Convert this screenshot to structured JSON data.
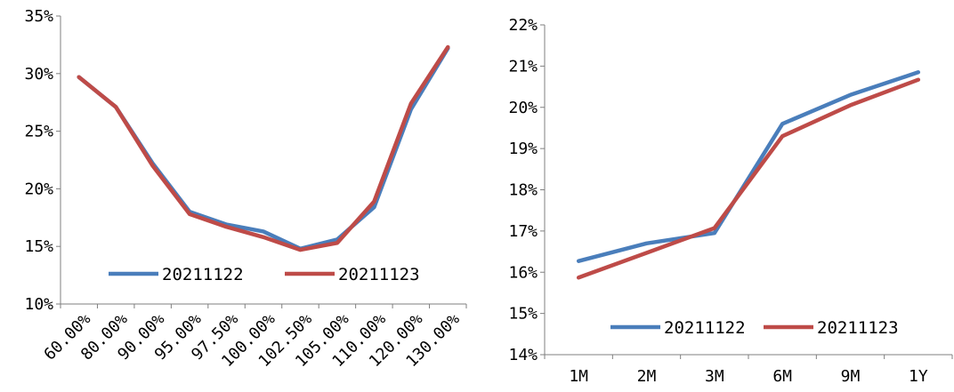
{
  "chart_data": [
    {
      "type": "line",
      "categories": [
        "60.00%",
        "80.00%",
        "90.00%",
        "95.00%",
        "97.50%",
        "100.00%",
        "102.50%",
        "105.00%",
        "110.00%",
        "120.00%",
        "130.00%"
      ],
      "y_ticks": [
        "10%",
        "15%",
        "20%",
        "25%",
        "30%",
        "35%"
      ],
      "ylim": [
        10,
        35
      ],
      "series": [
        {
          "name": "20211122",
          "color": "#4a7ebb",
          "values": [
            29.7,
            27.1,
            22.2,
            18.0,
            16.9,
            16.3,
            14.8,
            15.6,
            18.4,
            26.9,
            32.2
          ]
        },
        {
          "name": "20211123",
          "color": "#be4b48",
          "values": [
            29.7,
            27.1,
            22.0,
            17.8,
            16.7,
            15.8,
            14.7,
            15.3,
            18.9,
            27.4,
            32.3
          ]
        }
      ],
      "legend_position": "bottom-center",
      "grid": false
    },
    {
      "type": "line",
      "categories": [
        "1M",
        "2M",
        "3M",
        "6M",
        "9M",
        "1Y"
      ],
      "y_ticks": [
        "14%",
        "15%",
        "16%",
        "17%",
        "18%",
        "19%",
        "20%",
        "21%",
        "22%"
      ],
      "ylim": [
        14,
        22
      ],
      "series": [
        {
          "name": "20211122",
          "color": "#4a7ebb",
          "values": [
            16.27,
            16.7,
            16.95,
            19.6,
            20.3,
            20.85
          ]
        },
        {
          "name": "20211123",
          "color": "#be4b48",
          "values": [
            15.87,
            16.47,
            17.07,
            19.3,
            20.05,
            20.67
          ]
        }
      ],
      "legend_position": "bottom-center",
      "grid": false
    }
  ]
}
